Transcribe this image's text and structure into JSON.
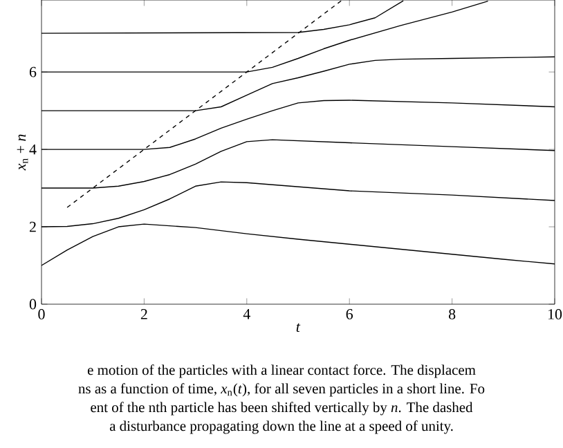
{
  "chart_data": {
    "type": "line",
    "xlabel": "*t*",
    "ylabel": "*x*$_{n}$ + *n*",
    "xlim": [
      0,
      10
    ],
    "ylim": [
      0,
      7.86
    ],
    "xticks": [
      0,
      2,
      4,
      6,
      8,
      10
    ],
    "yticks": [
      0,
      2,
      4,
      6
    ],
    "series": [
      {
        "color": "#000000",
        "x": [
          0,
          0.5,
          1,
          1.5,
          2,
          3,
          4,
          5,
          6,
          7,
          8,
          9,
          10
        ],
        "values": [
          1.0,
          1.4,
          1.75,
          2.0,
          2.07,
          1.98,
          1.82,
          1.68,
          1.55,
          1.42,
          1.29,
          1.16,
          1.04
        ]
      },
      {
        "color": "#000000",
        "x": [
          0,
          0.5,
          1,
          1.5,
          2,
          2.5,
          3,
          3.5,
          4,
          6,
          8,
          10
        ],
        "values": [
          2.0,
          2.01,
          2.08,
          2.22,
          2.44,
          2.72,
          3.05,
          3.16,
          3.14,
          2.93,
          2.82,
          2.68
        ]
      },
      {
        "color": "#000000",
        "x": [
          0,
          1,
          1.5,
          2,
          2.5,
          3,
          3.5,
          4,
          4.5,
          6,
          8,
          10
        ],
        "values": [
          3.0,
          3.0,
          3.05,
          3.17,
          3.35,
          3.62,
          3.95,
          4.2,
          4.25,
          4.17,
          4.07,
          3.97
        ]
      },
      {
        "color": "#000000",
        "x": [
          0,
          2,
          2.5,
          3,
          3.5,
          4,
          4.5,
          5,
          5.5,
          6,
          8,
          10
        ],
        "values": [
          4.0,
          4.0,
          4.05,
          4.27,
          4.55,
          4.78,
          5.0,
          5.2,
          5.26,
          5.27,
          5.2,
          5.1
        ]
      },
      {
        "color": "#000000",
        "x": [
          0,
          3,
          3.5,
          4,
          4.5,
          5,
          5.5,
          6,
          6.5,
          7,
          8,
          10
        ],
        "values": [
          5.0,
          5.0,
          5.1,
          5.4,
          5.7,
          5.85,
          6.02,
          6.2,
          6.3,
          6.33,
          6.35,
          6.39
        ]
      },
      {
        "color": "#000000",
        "x": [
          0,
          4,
          4.5,
          5,
          5.5,
          6,
          7,
          8,
          8.7
        ],
        "values": [
          6.0,
          6.0,
          6.12,
          6.35,
          6.6,
          6.82,
          7.2,
          7.55,
          7.83
        ]
      },
      {
        "color": "#000000",
        "x": [
          0,
          5,
          5.5,
          6,
          6.5,
          7.05
        ],
        "values": [
          7.0,
          7.02,
          7.1,
          7.22,
          7.4,
          7.84
        ]
      },
      {
        "color": "#000000",
        "line_style": "dashed",
        "x": [
          0.5,
          5.85
        ],
        "values": [
          2.5,
          7.85
        ]
      }
    ],
    "annotations": [
      "e motion of the particles with a linear contact force. The displacem",
      "ns as a function of time, *x*$_{n}$(*t*), for all seven particles in a short line. Fo",
      "ent of the nth particle has been shifted vertically by *n*. The dashed",
      "a disturbance propagating down the line at a speed of unity."
    ]
  }
}
